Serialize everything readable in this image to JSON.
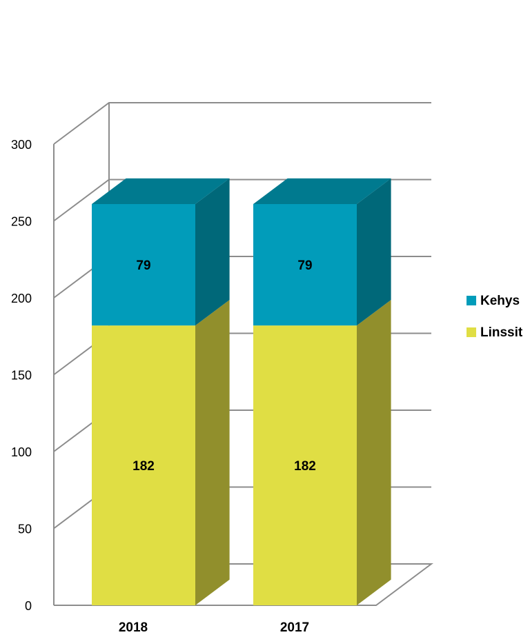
{
  "chart_data": {
    "type": "bar",
    "stacked": true,
    "three_d": true,
    "categories": [
      "2018",
      "2017"
    ],
    "series": [
      {
        "name": "Linssit",
        "values": [
          182,
          182
        ],
        "color": "#e0de44",
        "side_color": "#918f2c"
      },
      {
        "name": "Kehys",
        "values": [
          79,
          79
        ],
        "color": "#019cba",
        "side_color": "#006879"
      }
    ],
    "ylim": [
      0,
      300
    ],
    "yticks": [
      0,
      50,
      100,
      150,
      200,
      250,
      300
    ],
    "grid": true,
    "legend": "right",
    "data_labels": true
  }
}
